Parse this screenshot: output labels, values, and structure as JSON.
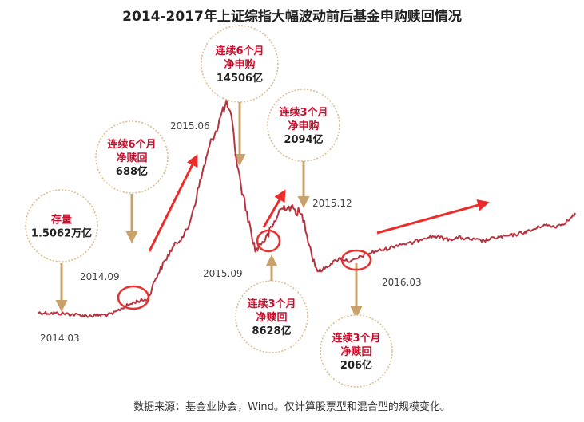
{
  "title": "2014-2017年上证综指大幅波动前后基金申购赎回情况",
  "source": "数据来源：基金业协会，Wind。仅计算股票型和混合型的规模变化。",
  "colors": {
    "line": "#b5343f",
    "arrow": "#ee2b2b",
    "connector": "#c9a16a",
    "circle_border": "#d9b98a",
    "highlight": "#e8302f"
  },
  "chart_data": {
    "type": "line",
    "title": "2014-2017年上证综指大幅波动前后基金申购赎回情况",
    "xlabel": "",
    "ylabel": "",
    "grid": false,
    "date_labels": [
      "2014.03",
      "2014.09",
      "2015.06",
      "2015.09",
      "2015.12",
      "2016.03"
    ],
    "callouts": [
      {
        "id": "stock",
        "lines": [
          "存量",
          "1.5062万亿"
        ]
      },
      {
        "id": "c1",
        "lines": [
          "连续6个月",
          "净赎回",
          "688亿"
        ]
      },
      {
        "id": "c2",
        "lines": [
          "连续6个月",
          "净申购",
          "14506亿"
        ]
      },
      {
        "id": "c3",
        "lines": [
          "连续3个月",
          "净申购",
          "2094亿"
        ]
      },
      {
        "id": "c4",
        "lines": [
          "连续3个月",
          "净赎回",
          "8628亿"
        ]
      },
      {
        "id": "c5",
        "lines": [
          "连续3个月",
          "净赎回",
          "206亿"
        ]
      }
    ]
  }
}
